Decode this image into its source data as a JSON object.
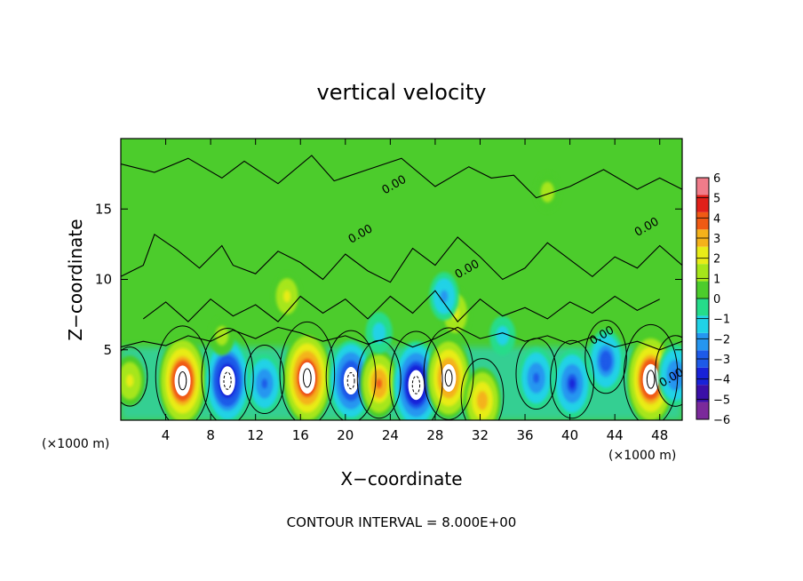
{
  "chart_data": {
    "type": "heatmap",
    "title": "vertical velocity",
    "xlabel": "X−coordinate",
    "ylabel": "Z−coordinate",
    "x_unit_label": "(×1000 m)",
    "x_unit_label_right": "(×1000 m)",
    "footer": "CONTOUR INTERVAL = 8.000E+00",
    "xlim": [
      0,
      50
    ],
    "ylim": [
      0,
      20
    ],
    "x_ticks": [
      4,
      8,
      12,
      16,
      20,
      24,
      28,
      32,
      36,
      40,
      44,
      48
    ],
    "x_tick_labels": [
      "4",
      "8",
      "12",
      "16",
      "20",
      "24",
      "28",
      "32",
      "36",
      "40",
      "44",
      "48"
    ],
    "y_ticks": [
      5,
      10,
      15
    ],
    "y_tick_labels": [
      "5",
      "10",
      "15"
    ],
    "colorbar": {
      "min": -6,
      "max": 6,
      "tick_values": [
        6,
        5,
        4,
        3,
        2,
        1,
        0,
        -1,
        -2,
        -3,
        -4,
        -5,
        -6
      ],
      "tick_labels": [
        "6",
        "5",
        "4",
        "3",
        "2",
        "1",
        "0",
        "−1",
        "−2",
        "−3",
        "−4",
        "−5",
        "−6"
      ],
      "colors": [
        "#7b2a9b",
        "#3a0fa8",
        "#1822d8",
        "#1d5ae8",
        "#2596f0",
        "#20d2e6",
        "#25dc8a",
        "#4ccc2c",
        "#a6e61a",
        "#e8ec18",
        "#f4b21a",
        "#f05a14",
        "#e0201a",
        "#f07c8a"
      ]
    },
    "contour_labels": [
      "0.00",
      "0.00",
      "0.00",
      "0.00",
      "0.00",
      "0.00"
    ],
    "cells": [
      {
        "x": 0.8,
        "z": 2.8,
        "w": 2.0
      },
      {
        "x": 5.5,
        "z": 2.8,
        "w": 5.6
      },
      {
        "x": 9.5,
        "z": 2.8,
        "w": -5.2
      },
      {
        "x": 12.8,
        "z": 2.6,
        "w": -2.8
      },
      {
        "x": 16.6,
        "z": 3.0,
        "w": 5.8
      },
      {
        "x": 20.5,
        "z": 2.8,
        "w": -4.8
      },
      {
        "x": 23.0,
        "z": 2.6,
        "w": 3.6
      },
      {
        "x": 26.3,
        "z": 2.5,
        "w": -5.4
      },
      {
        "x": 29.2,
        "z": 3.0,
        "w": 4.8
      },
      {
        "x": 32.2,
        "z": 1.4,
        "w": 3.4
      },
      {
        "x": 37.0,
        "z": 3.0,
        "w": -3.0
      },
      {
        "x": 40.2,
        "z": 2.6,
        "w": -3.6
      },
      {
        "x": 43.2,
        "z": 4.2,
        "w": -3.2
      },
      {
        "x": 47.2,
        "z": 2.9,
        "w": 5.6
      },
      {
        "x": 49.4,
        "z": 3.2,
        "w": -3.0
      },
      {
        "x": 29.8,
        "z": 7.6,
        "w": 2.2
      },
      {
        "x": 28.8,
        "z": 8.8,
        "w": -1.8
      },
      {
        "x": 14.8,
        "z": 8.8,
        "w": 1.8
      },
      {
        "x": 38.0,
        "z": 16.2,
        "w": 1.2
      },
      {
        "x": 23.0,
        "z": 6.2,
        "w": -1.2
      },
      {
        "x": 34.0,
        "z": 6.0,
        "w": -1.0
      },
      {
        "x": 9.0,
        "z": 6.0,
        "w": 1.0
      }
    ]
  }
}
